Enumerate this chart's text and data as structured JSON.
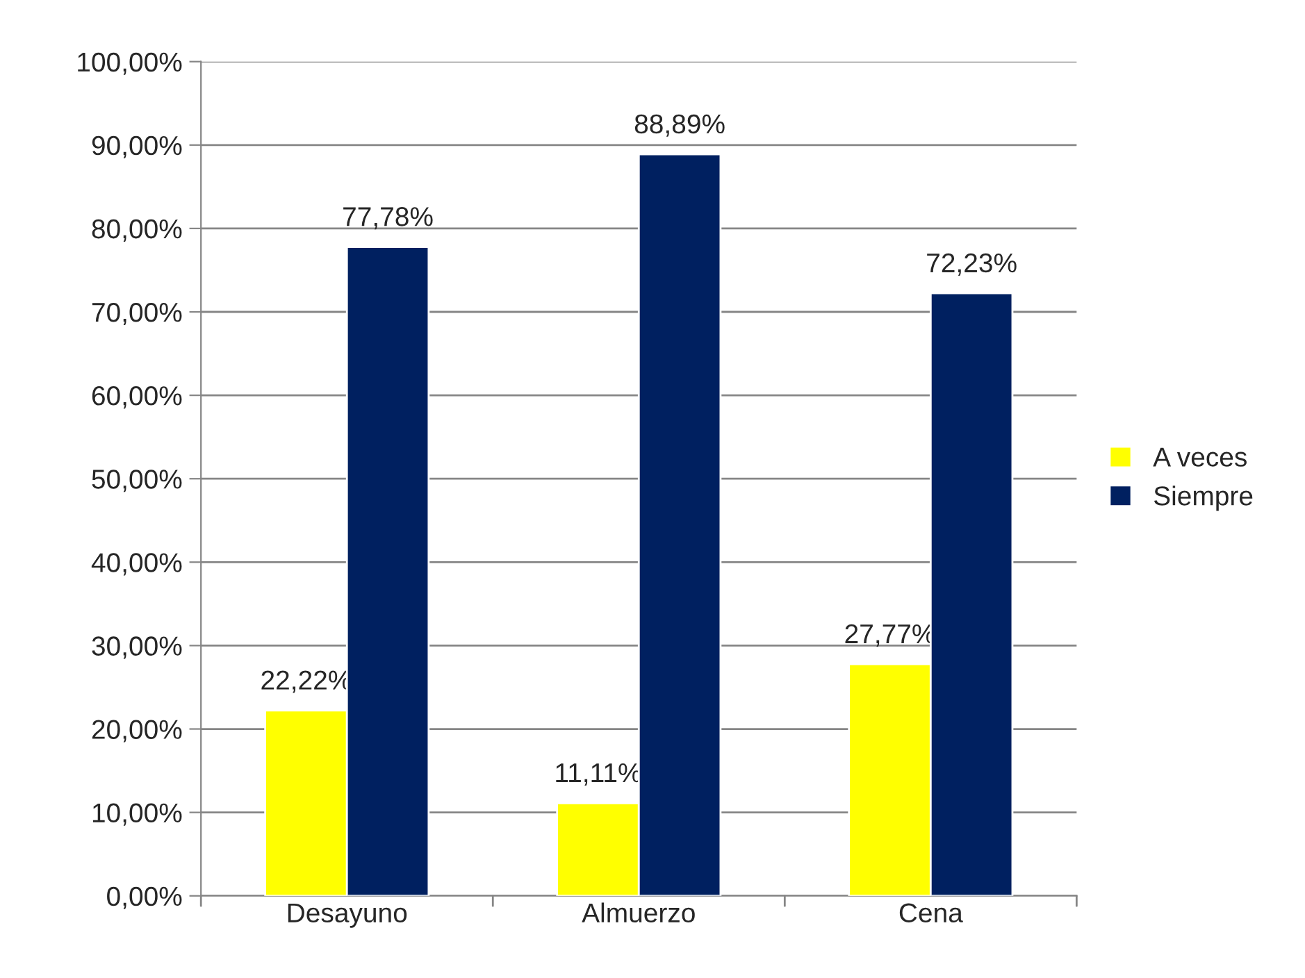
{
  "chart_data": {
    "type": "bar",
    "categories": [
      "Desayuno",
      "Almuerzo",
      "Cena"
    ],
    "series": [
      {
        "name": "A veces",
        "color": "#ffff00",
        "values": [
          22.22,
          11.11,
          27.77
        ],
        "value_labels": [
          "22,22%",
          "11,11%",
          "27,77%"
        ]
      },
      {
        "name": "Siempre",
        "color": "#002060",
        "values": [
          77.78,
          88.89,
          72.23
        ],
        "value_labels": [
          "77,78%",
          "88,89%",
          "72,23%"
        ]
      }
    ],
    "ylim": [
      0,
      100
    ],
    "yticks": [
      {
        "value": 0,
        "label": "0,00%"
      },
      {
        "value": 10,
        "label": "10,00%"
      },
      {
        "value": 20,
        "label": "20,00%"
      },
      {
        "value": 30,
        "label": "30,00%"
      },
      {
        "value": 40,
        "label": "40,00%"
      },
      {
        "value": 50,
        "label": "50,00%"
      },
      {
        "value": 60,
        "label": "60,00%"
      },
      {
        "value": 70,
        "label": "70,00%"
      },
      {
        "value": 80,
        "label": "80,00%"
      },
      {
        "value": 90,
        "label": "90,00%"
      },
      {
        "value": 100,
        "label": "100,00%"
      }
    ],
    "grid": "y",
    "legend": "right"
  }
}
